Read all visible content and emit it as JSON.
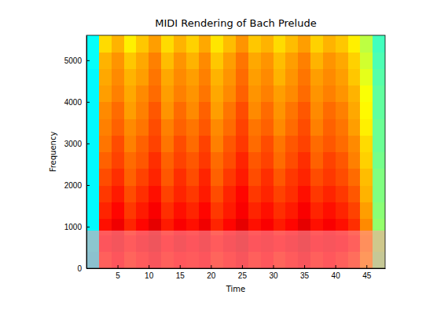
{
  "chart_data": {
    "type": "heatmap",
    "title": "MIDI Rendering of Bach Prelude",
    "x_label": "Time",
    "y_label": "Frequency",
    "xlim": [
      0,
      48
    ],
    "ylim": [
      0,
      5600
    ],
    "xticks": [
      5,
      10,
      15,
      20,
      25,
      30,
      35,
      40,
      45
    ],
    "yticks": [
      0,
      1000,
      2000,
      3000,
      4000,
      5000
    ],
    "x_bins": [
      0,
      2,
      4,
      6,
      8,
      10,
      12,
      14,
      16,
      18,
      20,
      22,
      24,
      26,
      28,
      30,
      32,
      34,
      36,
      38,
      40,
      42,
      44,
      46,
      48
    ],
    "y_bins": [
      0,
      400,
      800,
      1200,
      1600,
      2000,
      2400,
      2800,
      3200,
      3600,
      4000,
      4400,
      4800,
      5200,
      5600
    ],
    "clim": [
      0,
      1
    ],
    "cells": [
      [
        0.36,
        0.85,
        0.88,
        0.84,
        0.86,
        0.89,
        0.85,
        0.87,
        0.86,
        0.88,
        0.84,
        0.86,
        0.89,
        0.85,
        0.87,
        0.84,
        0.86,
        0.89,
        0.85,
        0.87,
        0.85,
        0.82,
        0.73,
        0.5
      ],
      [
        0.37,
        0.88,
        0.9,
        0.86,
        0.89,
        0.91,
        0.87,
        0.9,
        0.88,
        0.9,
        0.86,
        0.89,
        0.91,
        0.88,
        0.89,
        0.87,
        0.89,
        0.91,
        0.88,
        0.89,
        0.88,
        0.85,
        0.75,
        0.52
      ],
      [
        0.37,
        0.86,
        0.89,
        0.84,
        0.87,
        0.9,
        0.85,
        0.88,
        0.86,
        0.89,
        0.84,
        0.87,
        0.9,
        0.86,
        0.88,
        0.85,
        0.87,
        0.9,
        0.86,
        0.88,
        0.86,
        0.83,
        0.74,
        0.52
      ],
      [
        0.37,
        0.84,
        0.87,
        0.82,
        0.85,
        0.88,
        0.83,
        0.86,
        0.84,
        0.87,
        0.82,
        0.85,
        0.88,
        0.84,
        0.86,
        0.83,
        0.85,
        0.88,
        0.84,
        0.86,
        0.84,
        0.81,
        0.72,
        0.51
      ],
      [
        0.37,
        0.82,
        0.85,
        0.8,
        0.83,
        0.86,
        0.81,
        0.84,
        0.82,
        0.85,
        0.8,
        0.84,
        0.87,
        0.82,
        0.84,
        0.81,
        0.83,
        0.86,
        0.82,
        0.84,
        0.82,
        0.79,
        0.7,
        0.5
      ],
      [
        0.37,
        0.8,
        0.83,
        0.78,
        0.81,
        0.84,
        0.79,
        0.83,
        0.8,
        0.84,
        0.78,
        0.82,
        0.85,
        0.8,
        0.83,
        0.79,
        0.82,
        0.84,
        0.8,
        0.82,
        0.8,
        0.77,
        0.69,
        0.5
      ],
      [
        0.37,
        0.78,
        0.81,
        0.77,
        0.79,
        0.83,
        0.78,
        0.81,
        0.79,
        0.82,
        0.77,
        0.8,
        0.84,
        0.79,
        0.81,
        0.77,
        0.8,
        0.83,
        0.78,
        0.81,
        0.79,
        0.75,
        0.67,
        0.49
      ],
      [
        0.37,
        0.76,
        0.8,
        0.75,
        0.78,
        0.81,
        0.76,
        0.8,
        0.77,
        0.81,
        0.75,
        0.79,
        0.82,
        0.77,
        0.8,
        0.76,
        0.79,
        0.81,
        0.77,
        0.79,
        0.77,
        0.74,
        0.66,
        0.48
      ],
      [
        0.37,
        0.75,
        0.78,
        0.74,
        0.76,
        0.8,
        0.75,
        0.78,
        0.76,
        0.79,
        0.74,
        0.77,
        0.81,
        0.76,
        0.78,
        0.74,
        0.77,
        0.8,
        0.75,
        0.78,
        0.76,
        0.72,
        0.64,
        0.48
      ],
      [
        0.37,
        0.74,
        0.77,
        0.72,
        0.75,
        0.79,
        0.73,
        0.77,
        0.74,
        0.78,
        0.72,
        0.76,
        0.8,
        0.74,
        0.77,
        0.73,
        0.76,
        0.79,
        0.74,
        0.77,
        0.75,
        0.71,
        0.63,
        0.47
      ],
      [
        0.37,
        0.72,
        0.75,
        0.71,
        0.74,
        0.77,
        0.72,
        0.75,
        0.73,
        0.76,
        0.71,
        0.74,
        0.78,
        0.73,
        0.75,
        0.72,
        0.74,
        0.77,
        0.73,
        0.75,
        0.73,
        0.7,
        0.62,
        0.47
      ],
      [
        0.37,
        0.71,
        0.74,
        0.7,
        0.72,
        0.76,
        0.71,
        0.74,
        0.72,
        0.75,
        0.7,
        0.73,
        0.77,
        0.72,
        0.74,
        0.7,
        0.73,
        0.76,
        0.72,
        0.74,
        0.72,
        0.68,
        0.6,
        0.46
      ],
      [
        0.38,
        0.7,
        0.73,
        0.68,
        0.71,
        0.75,
        0.69,
        0.73,
        0.7,
        0.74,
        0.68,
        0.72,
        0.76,
        0.71,
        0.73,
        0.69,
        0.72,
        0.75,
        0.7,
        0.73,
        0.71,
        0.67,
        0.58,
        0.45
      ],
      [
        0.38,
        0.66,
        0.7,
        0.64,
        0.68,
        0.72,
        0.66,
        0.7,
        0.67,
        0.71,
        0.65,
        0.69,
        0.73,
        0.68,
        0.7,
        0.66,
        0.69,
        0.72,
        0.67,
        0.7,
        0.68,
        0.64,
        0.56,
        0.44
      ]
    ]
  }
}
